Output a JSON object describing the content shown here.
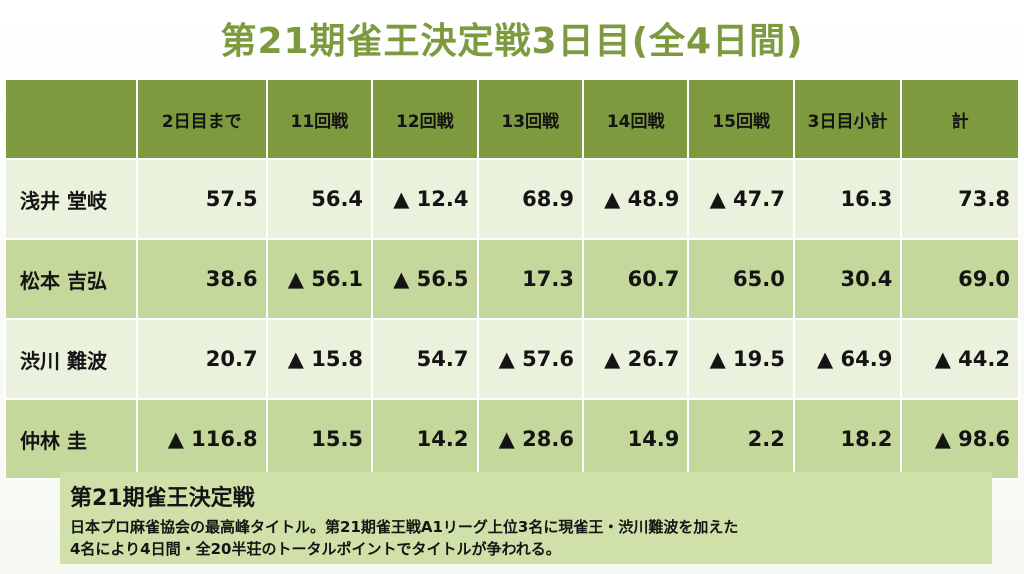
{
  "title": "第21期雀王決定戦3日目(全4日間)",
  "table": {
    "headers": [
      "",
      "2日目まで",
      "11回戦",
      "12回戦",
      "13回戦",
      "14回戦",
      "15回戦",
      "3日目小計",
      "計"
    ],
    "rows": [
      {
        "name": "浅井 堂岐",
        "values": [
          "57.5",
          "56.4",
          "▲ 12.4",
          "68.9",
          "▲ 48.9",
          "▲ 47.7",
          "16.3",
          "73.8"
        ]
      },
      {
        "name": "松本 吉弘",
        "values": [
          "38.6",
          "▲ 56.1",
          "▲ 56.5",
          "17.3",
          "60.7",
          "65.0",
          "30.4",
          "69.0"
        ]
      },
      {
        "name": "渋川 難波",
        "values": [
          "20.7",
          "▲ 15.8",
          "54.7",
          "▲ 57.6",
          "▲ 26.7",
          "▲ 19.5",
          "▲ 64.9",
          "▲ 44.2"
        ]
      },
      {
        "name": "仲林 圭",
        "values": [
          "▲ 116.8",
          "15.5",
          "14.2",
          "▲ 28.6",
          "14.9",
          "2.2",
          "18.2",
          "▲ 98.6"
        ]
      }
    ]
  },
  "note": {
    "title": "第21期雀王決定戦",
    "line1": "日本プロ麻雀協会の最高峰タイトル。第21期雀王戦A1リーグ上位3名に現雀王・渋川難波を加えた",
    "line2": "4名により4日間・全20半荘のトータルポイントでタイトルが争われる。"
  },
  "colors": {
    "accent": "#7d9a3e",
    "row_light": "#eaf1dc",
    "row_mid": "#c4d89c",
    "note_bg": "#cfe1a8"
  }
}
